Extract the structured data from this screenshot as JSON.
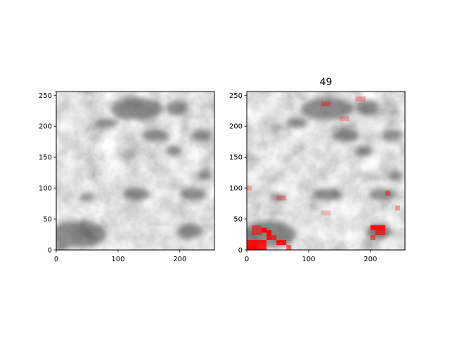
{
  "figure": {
    "background": "#ffffff"
  },
  "chart_data": [
    {
      "type": "heatmap",
      "title": "",
      "xlabel": "",
      "ylabel": "",
      "xlim": [
        0,
        256
      ],
      "ylim": [
        0,
        256
      ],
      "x_ticks": [
        0,
        100,
        200
      ],
      "y_ticks": [
        0,
        50,
        100,
        150,
        200,
        250
      ],
      "x_tick_labels": [
        "0",
        "100",
        "200"
      ],
      "y_tick_labels": [
        "0",
        "50",
        "100",
        "150",
        "200",
        "250"
      ],
      "colormap": "gray",
      "grid": false,
      "dark_regions": [
        {
          "x": 130,
          "y": 228,
          "rx": 42,
          "ry": 18
        },
        {
          "x": 195,
          "y": 230,
          "rx": 18,
          "ry": 12
        },
        {
          "x": 235,
          "y": 185,
          "rx": 16,
          "ry": 10
        },
        {
          "x": 80,
          "y": 205,
          "rx": 18,
          "ry": 8
        },
        {
          "x": 160,
          "y": 185,
          "rx": 22,
          "ry": 10
        },
        {
          "x": 190,
          "y": 160,
          "rx": 14,
          "ry": 8
        },
        {
          "x": 130,
          "y": 90,
          "rx": 22,
          "ry": 10
        },
        {
          "x": 220,
          "y": 90,
          "rx": 22,
          "ry": 10
        },
        {
          "x": 50,
          "y": 85,
          "rx": 12,
          "ry": 6
        },
        {
          "x": 35,
          "y": 25,
          "rx": 45,
          "ry": 22
        },
        {
          "x": 8,
          "y": 4,
          "rx": 10,
          "ry": 5
        },
        {
          "x": 215,
          "y": 30,
          "rx": 20,
          "ry": 12
        },
        {
          "x": 240,
          "y": 120,
          "rx": 12,
          "ry": 8
        }
      ]
    },
    {
      "type": "heatmap",
      "title": "49",
      "xlabel": "",
      "ylabel": "",
      "xlim": [
        0,
        256
      ],
      "ylim": [
        0,
        256
      ],
      "x_ticks": [
        0,
        100,
        200
      ],
      "y_ticks": [
        0,
        50,
        100,
        150,
        200,
        250
      ],
      "x_tick_labels": [
        "0",
        "100",
        "200"
      ],
      "y_tick_labels": [
        "0",
        "50",
        "100",
        "150",
        "200",
        "250"
      ],
      "colormap": "gray",
      "overlay_color": "#ff0000",
      "grid": false,
      "overlay_cells": [
        {
          "x": 0,
          "y": 0,
          "w": 16,
          "h": 8,
          "a": 1.0
        },
        {
          "x": 0,
          "y": 8,
          "w": 16,
          "h": 8,
          "a": 0.9
        },
        {
          "x": 16,
          "y": 0,
          "w": 16,
          "h": 16,
          "a": 0.85
        },
        {
          "x": 24,
          "y": 28,
          "w": 8,
          "h": 8,
          "a": 1.0
        },
        {
          "x": 32,
          "y": 24,
          "w": 8,
          "h": 8,
          "a": 0.95
        },
        {
          "x": 32,
          "y": 16,
          "w": 8,
          "h": 8,
          "a": 0.85
        },
        {
          "x": 40,
          "y": 16,
          "w": 8,
          "h": 8,
          "a": 0.7
        },
        {
          "x": 48,
          "y": 8,
          "w": 16,
          "h": 8,
          "a": 0.85
        },
        {
          "x": 64,
          "y": 0,
          "w": 8,
          "h": 8,
          "a": 0.6
        },
        {
          "x": 8,
          "y": 24,
          "w": 16,
          "h": 16,
          "a": 0.55
        },
        {
          "x": 200,
          "y": 32,
          "w": 24,
          "h": 8,
          "a": 0.9
        },
        {
          "x": 208,
          "y": 24,
          "w": 16,
          "h": 8,
          "a": 0.7
        },
        {
          "x": 200,
          "y": 16,
          "w": 8,
          "h": 8,
          "a": 0.5
        },
        {
          "x": 120,
          "y": 232,
          "w": 16,
          "h": 8,
          "a": 0.35
        },
        {
          "x": 176,
          "y": 240,
          "w": 16,
          "h": 8,
          "a": 0.3
        },
        {
          "x": 150,
          "y": 208,
          "w": 16,
          "h": 8,
          "a": 0.25
        },
        {
          "x": 224,
          "y": 88,
          "w": 8,
          "h": 8,
          "a": 0.45
        },
        {
          "x": 240,
          "y": 64,
          "w": 8,
          "h": 8,
          "a": 0.35
        },
        {
          "x": 48,
          "y": 80,
          "w": 16,
          "h": 8,
          "a": 0.3
        },
        {
          "x": 120,
          "y": 56,
          "w": 16,
          "h": 8,
          "a": 0.2
        },
        {
          "x": 0,
          "y": 96,
          "w": 8,
          "h": 8,
          "a": 0.3
        }
      ]
    }
  ]
}
